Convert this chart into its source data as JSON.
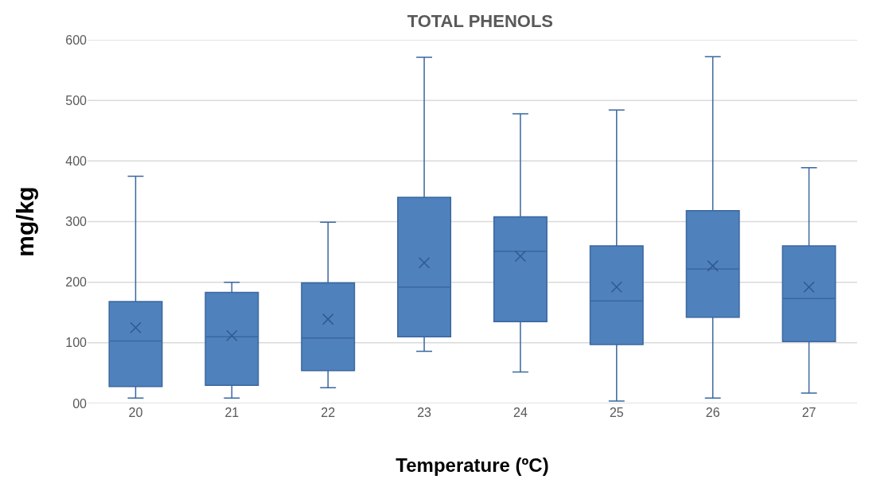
{
  "chart_data": {
    "type": "box",
    "title": "TOTAL PHENOLS",
    "xlabel": "Temperature (ºC)",
    "ylabel": "mg/kg",
    "categories": [
      "20",
      "21",
      "22",
      "23",
      "24",
      "25",
      "26",
      "27"
    ],
    "color": "#4f81bd",
    "boxes": [
      {
        "low": 9,
        "q1": 28,
        "median": 103,
        "q3": 168,
        "high": 375,
        "mean": 125
      },
      {
        "low": 9,
        "q1": 30,
        "median": 110,
        "q3": 183,
        "high": 200,
        "mean": 112
      },
      {
        "low": 26,
        "q1": 54,
        "median": 108,
        "q3": 199,
        "high": 299,
        "mean": 139
      },
      {
        "low": 86,
        "q1": 110,
        "median": 192,
        "q3": 340,
        "high": 571,
        "mean": 232
      },
      {
        "low": 52,
        "q1": 135,
        "median": 251,
        "q3": 308,
        "high": 478,
        "mean": 243
      },
      {
        "low": 4,
        "q1": 97,
        "median": 169,
        "q3": 260,
        "high": 484,
        "mean": 192
      },
      {
        "low": 9,
        "q1": 142,
        "median": 222,
        "q3": 318,
        "high": 572,
        "mean": 227
      },
      {
        "low": 17,
        "q1": 102,
        "median": 173,
        "q3": 260,
        "high": 389,
        "mean": 192
      }
    ],
    "ylim": [
      0,
      600
    ],
    "yticks": [
      {
        "value": 0,
        "label": "00"
      },
      100,
      200,
      300,
      400,
      500,
      600
    ],
    "grid": "y"
  }
}
